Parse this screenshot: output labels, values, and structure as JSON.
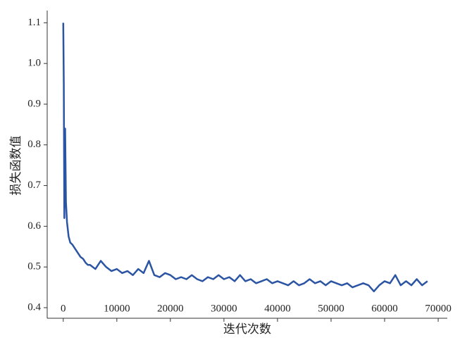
{
  "chart_data": {
    "type": "line",
    "x_label": "迭代次数",
    "y_label": "损失函数值",
    "color": "#2b54a3",
    "x": [
      0,
      100,
      200,
      350,
      500,
      700,
      1000,
      1300,
      1700,
      2200,
      2700,
      3200,
      3700,
      4200,
      4600,
      5000,
      6000,
      7000,
      8000,
      9000,
      10000,
      11000,
      12000,
      13000,
      14000,
      15000,
      16000,
      17000,
      18000,
      19000,
      20000,
      21000,
      22000,
      23000,
      24000,
      25000,
      26000,
      27000,
      28000,
      29000,
      30000,
      31000,
      32000,
      33000,
      34000,
      35000,
      36000,
      37000,
      38000,
      39000,
      40000,
      41000,
      42000,
      43000,
      44000,
      45000,
      46000,
      47000,
      48000,
      49000,
      50000,
      51000,
      52000,
      53000,
      54000,
      55000,
      56000,
      57000,
      58000,
      59000,
      60000,
      61000,
      62000,
      63000,
      64000,
      65000,
      66000,
      67000,
      68000
    ],
    "values": [
      1.1,
      0.95,
      0.62,
      0.84,
      0.66,
      0.61,
      0.575,
      0.56,
      0.555,
      0.545,
      0.535,
      0.525,
      0.52,
      0.51,
      0.505,
      0.505,
      0.495,
      0.515,
      0.5,
      0.49,
      0.495,
      0.485,
      0.49,
      0.48,
      0.495,
      0.485,
      0.515,
      0.48,
      0.475,
      0.485,
      0.48,
      0.47,
      0.475,
      0.47,
      0.48,
      0.47,
      0.465,
      0.475,
      0.47,
      0.48,
      0.47,
      0.475,
      0.465,
      0.48,
      0.465,
      0.47,
      0.46,
      0.465,
      0.47,
      0.46,
      0.465,
      0.46,
      0.455,
      0.465,
      0.455,
      0.46,
      0.47,
      0.46,
      0.465,
      0.455,
      0.465,
      0.46,
      0.455,
      0.46,
      0.45,
      0.455,
      0.46,
      0.455,
      0.44,
      0.455,
      0.465,
      0.46,
      0.48,
      0.455,
      0.465,
      0.455,
      0.47,
      0.455,
      0.465
    ],
    "xlim": [
      -3000,
      71700
    ],
    "ylim": [
      0.374,
      1.13
    ],
    "xticks": [
      0,
      10000,
      20000,
      30000,
      40000,
      50000,
      60000,
      70000
    ],
    "yticks": [
      0.4,
      0.5,
      0.6,
      0.7,
      0.8,
      0.9,
      {
        "value": 1,
        "label": "1.0"
      },
      1.1
    ]
  }
}
